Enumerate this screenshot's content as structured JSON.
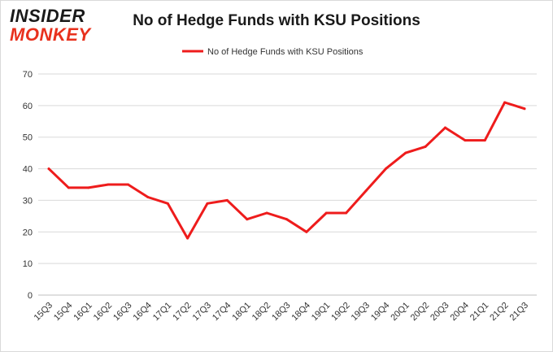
{
  "brand": {
    "line1": "INSIDER",
    "line2": "MONKEY"
  },
  "chart_data": {
    "type": "line",
    "title": "No of Hedge Funds with KSU Positions",
    "xlabel": "",
    "ylabel": "",
    "categories": [
      "15Q3",
      "15Q4",
      "16Q1",
      "16Q2",
      "16Q3",
      "16Q4",
      "17Q1",
      "17Q2",
      "17Q3",
      "17Q4",
      "18Q1",
      "18Q2",
      "18Q3",
      "18Q4",
      "19Q1",
      "19Q2",
      "19Q3",
      "19Q4",
      "20Q1",
      "20Q2",
      "20Q3",
      "20Q4",
      "21Q1",
      "21Q2",
      "21Q3"
    ],
    "series": [
      {
        "name": "No of Hedge Funds with KSU Positions",
        "values": [
          40,
          34,
          34,
          35,
          35,
          31,
          29,
          18,
          29,
          30,
          24,
          26,
          24,
          20,
          26,
          26,
          33,
          40,
          45,
          47,
          53,
          49,
          49,
          61,
          59
        ]
      }
    ],
    "ylim": [
      0,
      70
    ],
    "yticks": [
      0,
      10,
      20,
      30,
      40,
      50,
      60,
      70
    ],
    "grid": true,
    "legend": "top-center",
    "color": "#ee1c1c"
  }
}
